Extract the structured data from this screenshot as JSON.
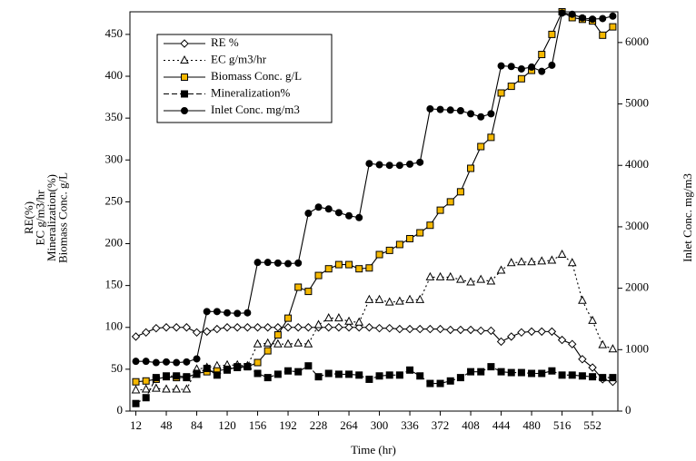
{
  "chart_data": {
    "type": "line",
    "x_label": "Time (hr)",
    "y_label": [
      "RE(%)",
      "EC g/m3/hr",
      "Mineralization(%)",
      "Biomass Conc. g/L"
    ],
    "y2_label": "Inlet Conc. mg/m3",
    "x": [
      12,
      24,
      36,
      48,
      60,
      72,
      84,
      96,
      108,
      120,
      132,
      144,
      156,
      168,
      180,
      192,
      204,
      216,
      228,
      240,
      252,
      264,
      276,
      288,
      300,
      312,
      324,
      336,
      348,
      360,
      372,
      384,
      396,
      408,
      420,
      432,
      444,
      456,
      468,
      480,
      492,
      504,
      516,
      528,
      540,
      552,
      564,
      576
    ],
    "xlim": [
      5,
      582
    ],
    "xticks": [
      12,
      48,
      84,
      120,
      156,
      192,
      228,
      264,
      300,
      336,
      372,
      408,
      444,
      480,
      516,
      552
    ],
    "ylim": [
      0,
      477
    ],
    "yticks": [
      0,
      50,
      100,
      150,
      200,
      250,
      300,
      350,
      400,
      450
    ],
    "y2lim": [
      0,
      6500
    ],
    "y2ticks": [
      0,
      1000,
      2000,
      3000,
      4000,
      5000,
      6000
    ],
    "legend": "upper left",
    "series": [
      {
        "name": "RE %",
        "color": "#000000",
        "marker": "diamond",
        "marker_fill": "#ffffff",
        "dash": "solid",
        "values": [
          89,
          94,
          99,
          100,
          100,
          100,
          94,
          95,
          98,
          100,
          100,
          100,
          100,
          100,
          100,
          100,
          100,
          100,
          100,
          100,
          100,
          100,
          100,
          100,
          99,
          99,
          98,
          98,
          98,
          98,
          98,
          97,
          97,
          97,
          96,
          96,
          83,
          89,
          94,
          95,
          95,
          95,
          85,
          80,
          62,
          52,
          38,
          35
        ]
      },
      {
        "name": "EC g/m3/hr",
        "color": "#000000",
        "marker": "triangle",
        "marker_fill": "#ffffff",
        "dash": "dotted",
        "values": [
          25,
          26,
          27,
          26,
          26,
          26,
          50,
          52,
          54,
          55,
          55,
          54,
          80,
          81,
          80,
          80,
          81,
          80,
          103,
          111,
          111,
          107,
          106,
          133,
          133,
          130,
          131,
          133,
          133,
          160,
          160,
          160,
          157,
          154,
          157,
          155,
          168,
          177,
          178,
          178,
          179,
          180,
          187,
          177,
          132,
          108,
          79,
          74
        ]
      },
      {
        "name": "Biomass Conc. g/L",
        "color": "#000000",
        "marker": "square",
        "marker_fill": "#f5b800",
        "dash": "solid",
        "values": [
          35,
          36,
          38,
          41,
          40,
          40,
          45,
          47,
          48,
          50,
          52,
          53,
          58,
          72,
          91,
          111,
          148,
          143,
          162,
          170,
          175,
          175,
          170,
          171,
          187,
          192,
          199,
          206,
          213,
          222,
          240,
          250,
          262,
          290,
          316,
          327,
          380,
          388,
          397,
          407,
          426,
          450,
          477,
          470,
          468,
          466,
          449,
          459
        ]
      },
      {
        "name": "Mineralization%",
        "color": "#000000",
        "marker": "square",
        "marker_fill": "#000000",
        "dash": "dashed",
        "values": [
          9,
          16,
          40,
          42,
          42,
          41,
          44,
          51,
          43,
          49,
          53,
          53,
          45,
          40,
          44,
          48,
          47,
          54,
          41,
          45,
          44,
          44,
          43,
          38,
          42,
          43,
          43,
          49,
          42,
          33,
          33,
          36,
          40,
          47,
          47,
          53,
          47,
          46,
          46,
          45,
          45,
          48,
          43,
          43,
          42,
          41,
          40,
          40
        ]
      },
      {
        "name": "Inlet Conc. mg/m3",
        "color": "#000000",
        "marker": "circle",
        "marker_fill": "#000000",
        "dash": "solid",
        "axis": "y2",
        "values": [
          810,
          810,
          790,
          800,
          790,
          800,
          850,
          1620,
          1620,
          1600,
          1590,
          1600,
          2420,
          2420,
          2410,
          2400,
          2410,
          3220,
          3320,
          3290,
          3230,
          3180,
          3150,
          4030,
          4010,
          4000,
          4000,
          4020,
          4050,
          4920,
          4910,
          4900,
          4890,
          4840,
          4790,
          4840,
          5620,
          5610,
          5570,
          5600,
          5530,
          5630,
          6480,
          6460,
          6400,
          6380,
          6390,
          6430
        ]
      }
    ]
  }
}
